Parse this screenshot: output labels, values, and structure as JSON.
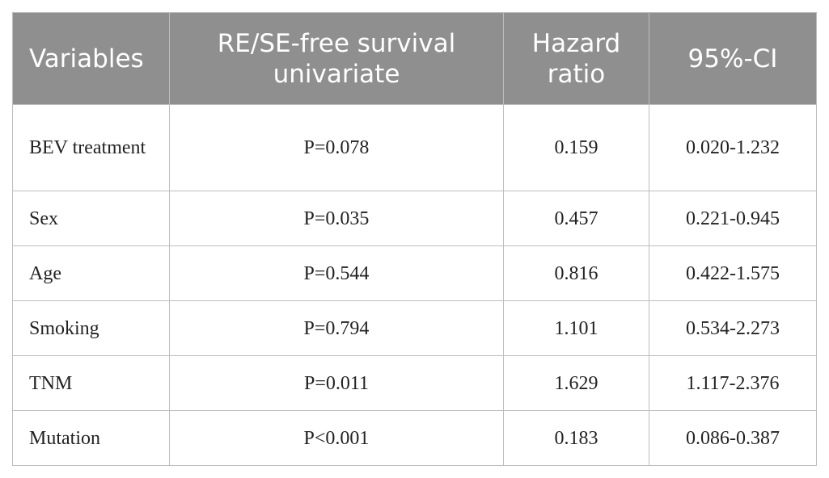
{
  "table": {
    "headers": [
      "Variables",
      "RE/SE-free survival univariate",
      "Hazard ratio",
      "95%-CI"
    ],
    "rows": [
      [
        "BEV treatment",
        "P=0.078",
        "0.159",
        "0.020-1.232"
      ],
      [
        "Sex",
        "P=0.035",
        "0.457",
        "0.221-0.945"
      ],
      [
        "Age",
        "P=0.544",
        "0.816",
        "0.422-1.575"
      ],
      [
        "Smoking",
        "P=0.794",
        "1.101",
        "0.534-2.273"
      ],
      [
        "TNM",
        "P=0.011",
        "1.629",
        "1.117-2.376"
      ],
      [
        "Mutation",
        "P<0.001",
        "0.183",
        "0.086-0.387"
      ]
    ]
  }
}
